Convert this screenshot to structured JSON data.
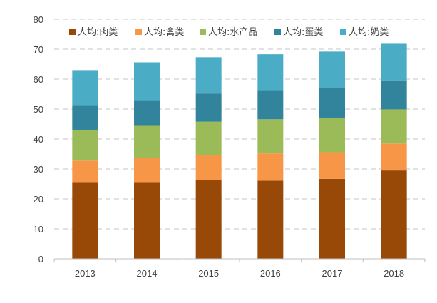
{
  "chart_data": {
    "type": "bar",
    "stacked": true,
    "categories": [
      "2013",
      "2014",
      "2015",
      "2016",
      "2017",
      "2018"
    ],
    "ylim": [
      0,
      80
    ],
    "yticks": [
      0,
      10,
      20,
      30,
      40,
      50,
      60,
      70,
      80
    ],
    "grid": "horizontal dashed",
    "legend_position": "top",
    "series": [
      {
        "name": "人均:肉类",
        "color": "#984807",
        "values": [
          25.6,
          25.6,
          26.2,
          26.1,
          26.7,
          29.5
        ]
      },
      {
        "name": "人均:禽类",
        "color": "#F79646",
        "values": [
          7.2,
          8.0,
          8.4,
          9.1,
          8.9,
          9.0
        ]
      },
      {
        "name": "人均:水产品",
        "color": "#9BBB59",
        "values": [
          10.3,
          10.8,
          11.2,
          11.4,
          11.5,
          11.4
        ]
      },
      {
        "name": "人均:蛋类",
        "color": "#31849B",
        "values": [
          8.2,
          8.6,
          9.4,
          9.7,
          9.9,
          9.7
        ]
      },
      {
        "name": "人均:奶类",
        "color": "#4BACC6",
        "values": [
          11.7,
          12.6,
          12.1,
          12.0,
          12.2,
          12.2
        ]
      }
    ]
  }
}
